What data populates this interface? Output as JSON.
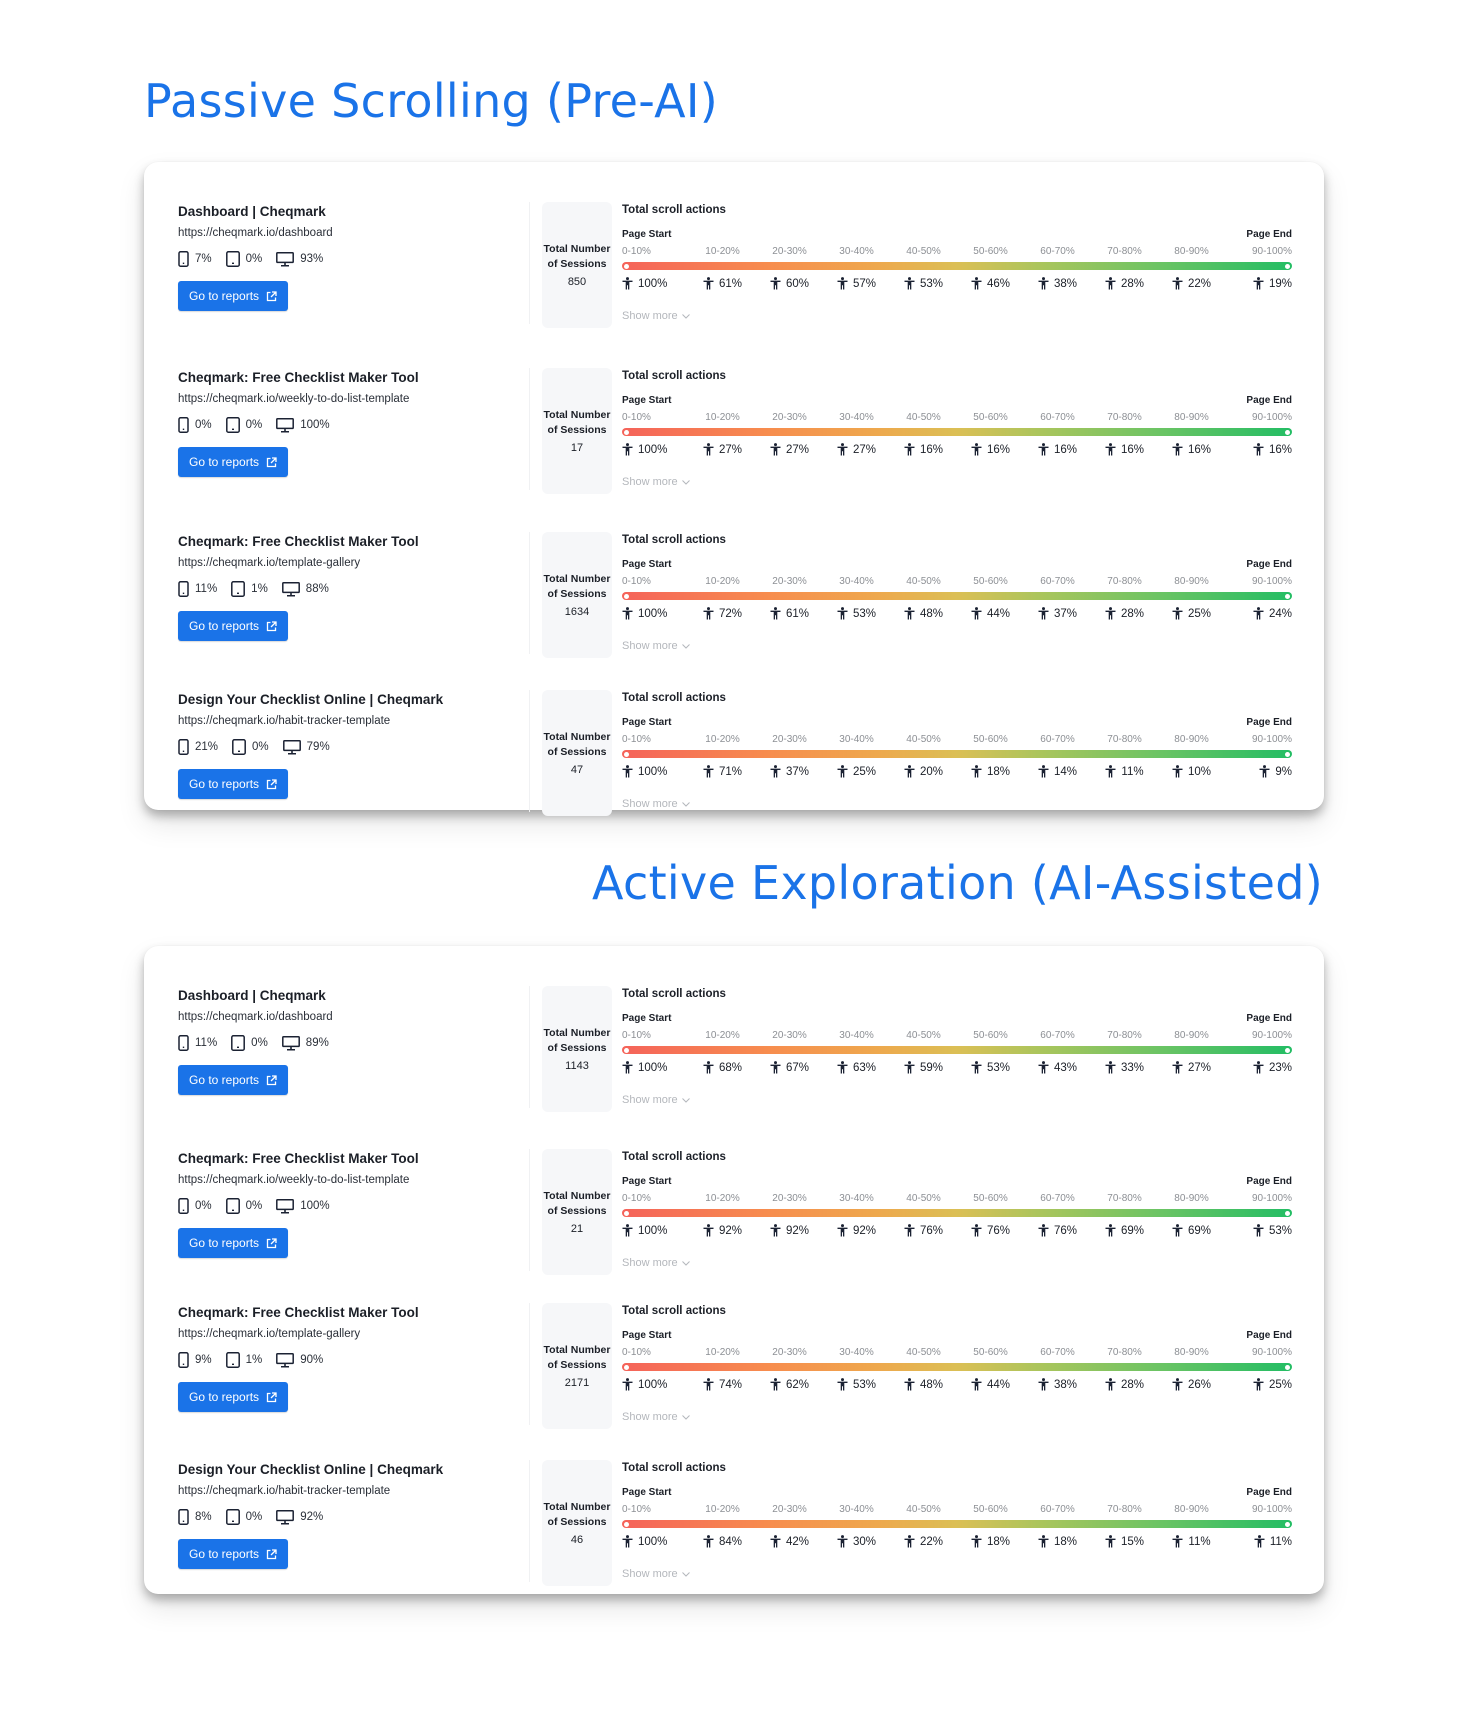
{
  "sections": [
    {
      "title": "Passive Scrolling (Pre-AI)",
      "rows": [
        {
          "page_title": "Dashboard | Cheqmark",
          "url": "https://cheqmark.io/dashboard",
          "devices": {
            "mobile": "7%",
            "tablet": "0%",
            "desktop": "93%"
          },
          "button": "Go to reports",
          "sessions_label": "Total Number of Sessions",
          "sessions": "850",
          "scroll_heading": "Total scroll actions",
          "page_start": "Page Start",
          "page_end": "Page End",
          "ranges": [
            "0-10%",
            "10-20%",
            "20-30%",
            "30-40%",
            "40-50%",
            "50-60%",
            "60-70%",
            "70-80%",
            "80-90%",
            "90-100%"
          ],
          "values": [
            "100%",
            "61%",
            "60%",
            "57%",
            "53%",
            "46%",
            "38%",
            "28%",
            "22%",
            "19%"
          ],
          "show_more": "Show more"
        },
        {
          "page_title": "Cheqmark: Free Checklist Maker Tool",
          "url": "https://cheqmark.io/weekly-to-do-list-template",
          "devices": {
            "mobile": "0%",
            "tablet": "0%",
            "desktop": "100%"
          },
          "button": "Go to reports",
          "sessions_label": "Total Number of Sessions",
          "sessions": "17",
          "scroll_heading": "Total scroll actions",
          "page_start": "Page Start",
          "page_end": "Page End",
          "ranges": [
            "0-10%",
            "10-20%",
            "20-30%",
            "30-40%",
            "40-50%",
            "50-60%",
            "60-70%",
            "70-80%",
            "80-90%",
            "90-100%"
          ],
          "values": [
            "100%",
            "27%",
            "27%",
            "27%",
            "16%",
            "16%",
            "16%",
            "16%",
            "16%",
            "16%"
          ],
          "show_more": "Show more"
        },
        {
          "page_title": "Cheqmark: Free Checklist Maker Tool",
          "url": "https://cheqmark.io/template-gallery",
          "devices": {
            "mobile": "11%",
            "tablet": "1%",
            "desktop": "88%"
          },
          "button": "Go to reports",
          "sessions_label": "Total Number of Sessions",
          "sessions": "1634",
          "scroll_heading": "Total scroll actions",
          "page_start": "Page Start",
          "page_end": "Page End",
          "ranges": [
            "0-10%",
            "10-20%",
            "20-30%",
            "30-40%",
            "40-50%",
            "50-60%",
            "60-70%",
            "70-80%",
            "80-90%",
            "90-100%"
          ],
          "values": [
            "100%",
            "72%",
            "61%",
            "53%",
            "48%",
            "44%",
            "37%",
            "28%",
            "25%",
            "24%"
          ],
          "show_more": "Show more"
        },
        {
          "page_title": "Design Your Checklist Online | Cheqmark",
          "url": "https://cheqmark.io/habit-tracker-template",
          "devices": {
            "mobile": "21%",
            "tablet": "0%",
            "desktop": "79%"
          },
          "button": "Go to reports",
          "sessions_label": "Total Number of Sessions",
          "sessions": "47",
          "scroll_heading": "Total scroll actions",
          "page_start": "Page Start",
          "page_end": "Page End",
          "ranges": [
            "0-10%",
            "10-20%",
            "20-30%",
            "30-40%",
            "40-50%",
            "50-60%",
            "60-70%",
            "70-80%",
            "80-90%",
            "90-100%"
          ],
          "values": [
            "100%",
            "71%",
            "37%",
            "25%",
            "20%",
            "18%",
            "14%",
            "11%",
            "10%",
            "9%"
          ],
          "show_more": "Show more"
        }
      ]
    },
    {
      "title": "Active Exploration (AI-Assisted)",
      "rows": [
        {
          "page_title": "Dashboard | Cheqmark",
          "url": "https://cheqmark.io/dashboard",
          "devices": {
            "mobile": "11%",
            "tablet": "0%",
            "desktop": "89%"
          },
          "button": "Go to reports",
          "sessions_label": "Total Number of Sessions",
          "sessions": "1143",
          "scroll_heading": "Total scroll actions",
          "page_start": "Page Start",
          "page_end": "Page End",
          "ranges": [
            "0-10%",
            "10-20%",
            "20-30%",
            "30-40%",
            "40-50%",
            "50-60%",
            "60-70%",
            "70-80%",
            "80-90%",
            "90-100%"
          ],
          "values": [
            "100%",
            "68%",
            "67%",
            "63%",
            "59%",
            "53%",
            "43%",
            "33%",
            "27%",
            "23%"
          ],
          "show_more": "Show more"
        },
        {
          "page_title": "Cheqmark: Free Checklist Maker Tool",
          "url": "https://cheqmark.io/weekly-to-do-list-template",
          "devices": {
            "mobile": "0%",
            "tablet": "0%",
            "desktop": "100%"
          },
          "button": "Go to reports",
          "sessions_label": "Total Number of Sessions",
          "sessions": "21",
          "scroll_heading": "Total scroll actions",
          "page_start": "Page Start",
          "page_end": "Page End",
          "ranges": [
            "0-10%",
            "10-20%",
            "20-30%",
            "30-40%",
            "40-50%",
            "50-60%",
            "60-70%",
            "70-80%",
            "80-90%",
            "90-100%"
          ],
          "values": [
            "100%",
            "92%",
            "92%",
            "92%",
            "76%",
            "76%",
            "76%",
            "69%",
            "69%",
            "53%"
          ],
          "show_more": "Show more"
        },
        {
          "page_title": "Cheqmark: Free Checklist Maker Tool",
          "url": "https://cheqmark.io/template-gallery",
          "devices": {
            "mobile": "9%",
            "tablet": "1%",
            "desktop": "90%"
          },
          "button": "Go to reports",
          "sessions_label": "Total Number of Sessions",
          "sessions": "2171",
          "scroll_heading": "Total scroll actions",
          "page_start": "Page Start",
          "page_end": "Page End",
          "ranges": [
            "0-10%",
            "10-20%",
            "20-30%",
            "30-40%",
            "40-50%",
            "50-60%",
            "60-70%",
            "70-80%",
            "80-90%",
            "90-100%"
          ],
          "values": [
            "100%",
            "74%",
            "62%",
            "53%",
            "48%",
            "44%",
            "38%",
            "28%",
            "26%",
            "25%"
          ],
          "show_more": "Show more"
        },
        {
          "page_title": "Design Your Checklist Online | Cheqmark",
          "url": "https://cheqmark.io/habit-tracker-template",
          "devices": {
            "mobile": "8%",
            "tablet": "0%",
            "desktop": "92%"
          },
          "button": "Go to reports",
          "sessions_label": "Total Number of Sessions",
          "sessions": "46",
          "scroll_heading": "Total scroll actions",
          "page_start": "Page Start",
          "page_end": "Page End",
          "ranges": [
            "0-10%",
            "10-20%",
            "20-30%",
            "30-40%",
            "40-50%",
            "50-60%",
            "60-70%",
            "70-80%",
            "80-90%",
            "90-100%"
          ],
          "values": [
            "100%",
            "84%",
            "42%",
            "30%",
            "22%",
            "18%",
            "18%",
            "15%",
            "11%",
            "11%"
          ],
          "show_more": "Show more"
        }
      ]
    }
  ],
  "colors": {
    "accent": "#1a73e8",
    "gradient_start": "#f5635a",
    "gradient_mid": "#eea84d",
    "gradient_end": "#23bd64",
    "muted_text": "#8c8f94"
  },
  "icons": {
    "mobile": "mobile-phone-icon",
    "tablet": "tablet-icon",
    "desktop": "desktop-monitor-icon",
    "external": "external-link-icon",
    "person": "person-icon",
    "chevron": "chevron-down-icon"
  }
}
